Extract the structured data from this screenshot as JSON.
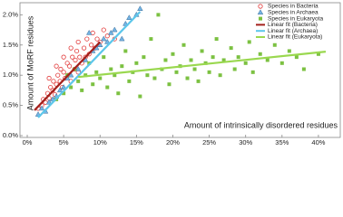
{
  "chart_data": {
    "type": "scatter",
    "x_label": "Amount of intrinsically disordered residues",
    "y_label": "Amount of MoRF residues",
    "xlim": [
      -1,
      43
    ],
    "ylim": [
      -0.03,
      2.2
    ],
    "xticks": [
      {
        "value": 0,
        "label": "0%"
      },
      {
        "value": 5,
        "label": "5%"
      },
      {
        "value": 10,
        "label": "10%"
      },
      {
        "value": 15,
        "label": "15%"
      },
      {
        "value": 20,
        "label": "20%"
      },
      {
        "value": 25,
        "label": "25%"
      },
      {
        "value": 30,
        "label": "30%"
      },
      {
        "value": 35,
        "label": "35%"
      },
      {
        "value": 40,
        "label": "40%"
      }
    ],
    "yticks": [
      {
        "value": 0,
        "label": "0.0%"
      },
      {
        "value": 0.5,
        "label": "0.5%"
      },
      {
        "value": 1,
        "label": "1.0%"
      },
      {
        "value": 1.5,
        "label": "1.5%"
      },
      {
        "value": 2,
        "label": "2.0%"
      }
    ],
    "legend": "top-right",
    "series": [
      {
        "name": "Species in Bacteria",
        "mode": "markers",
        "marker": "circle",
        "color": "#e23b3b",
        "x": [
          1.5,
          2,
          2.2,
          2.5,
          2.8,
          3,
          3.2,
          3.5,
          3.6,
          3.8,
          4,
          4.2,
          4.5,
          4.6,
          4.8,
          5,
          5.2,
          5.5,
          5.6,
          5.8,
          6,
          6.2,
          6.5,
          6.6,
          6.8,
          7,
          7.2,
          7.5,
          7.8,
          8,
          8.2,
          8.5,
          8.8,
          9,
          9.3,
          9.6,
          10,
          10.5,
          11,
          12,
          3,
          4,
          5,
          6,
          7
        ],
        "values": [
          0.45,
          0.5,
          0.6,
          0.55,
          0.7,
          0.62,
          0.8,
          0.75,
          0.9,
          0.68,
          0.85,
          1.0,
          0.9,
          1.1,
          0.8,
          1.05,
          0.95,
          1.2,
          1.0,
          1.15,
          0.9,
          1.3,
          1.1,
          1.25,
          1.4,
          1.05,
          1.3,
          1.2,
          1.45,
          1.3,
          1.6,
          1.35,
          1.5,
          1.7,
          1.45,
          1.6,
          1.55,
          1.75,
          1.65,
          1.6,
          0.95,
          1.15,
          1.3,
          1.45,
          1.55
        ]
      },
      {
        "name": "Species in Archaea",
        "mode": "markers",
        "marker": "triangle",
        "color": "#74b4e4",
        "x": [
          1.5,
          2,
          2.5,
          3,
          3.5,
          4,
          4.5,
          5,
          5.5,
          6,
          7,
          8,
          9,
          9.5,
          10,
          10.5,
          11,
          11.5,
          12,
          13,
          13.5,
          14,
          15,
          15.5,
          8.5
        ],
        "values": [
          0.35,
          0.45,
          0.4,
          0.55,
          0.6,
          0.65,
          0.75,
          0.8,
          0.95,
          1.0,
          1.1,
          1.25,
          1.4,
          1.45,
          1.5,
          1.6,
          1.55,
          1.7,
          1.75,
          1.6,
          1.85,
          1.95,
          2.0,
          2.1,
          1.7
        ]
      },
      {
        "name": "Species in Eukaryota",
        "mode": "markers",
        "marker": "square",
        "color": "#7cc142",
        "x": [
          4,
          5,
          5.5,
          6,
          6.5,
          7,
          7.5,
          8,
          8.5,
          9,
          9.5,
          10,
          10.5,
          11,
          11.5,
          12,
          12.5,
          13,
          13.5,
          14,
          14.5,
          15,
          15.5,
          16,
          16.5,
          17,
          17.5,
          18,
          18.5,
          19,
          19.5,
          20,
          20.5,
          21,
          21.5,
          22,
          22.5,
          23,
          23.5,
          24,
          24.5,
          25,
          25.5,
          26,
          26.5,
          27,
          28,
          28.5,
          29,
          30,
          30.5,
          31,
          32,
          33,
          34,
          35,
          36,
          37,
          38,
          40
        ],
        "values": [
          0.6,
          0.7,
          1.0,
          0.8,
          1.1,
          0.9,
          0.75,
          1.0,
          1.2,
          0.85,
          1.05,
          0.95,
          1.3,
          0.8,
          1.1,
          1.0,
          0.7,
          1.15,
          1.4,
          0.9,
          1.05,
          1.2,
          0.65,
          1.3,
          1.0,
          1.6,
          0.95,
          2.0,
          1.1,
          1.25,
          0.85,
          1.35,
          1.05,
          1.15,
          1.5,
          0.95,
          1.25,
          1.1,
          0.9,
          1.4,
          1.2,
          1.05,
          1.3,
          1.6,
          1.0,
          1.25,
          1.45,
          1.1,
          1.3,
          1.2,
          1.55,
          1.05,
          1.35,
          1.25,
          1.5,
          1.2,
          1.4,
          1.3,
          1.1,
          1.35
        ]
      },
      {
        "name": "Linear fit (Bacteria)",
        "mode": "line",
        "color": "#a3201c",
        "x": [
          1,
          10
        ],
        "values": [
          0.42,
          1.55
        ]
      },
      {
        "name": "Linear fit (Archaea)",
        "mode": "line",
        "color": "#5cc6ea",
        "x": [
          1.5,
          15.5
        ],
        "values": [
          0.3,
          2.05
        ]
      },
      {
        "name": "Linear fit (Eukaryota)",
        "mode": "line",
        "color": "#9ad84f",
        "x": [
          7,
          41
        ],
        "values": [
          0.97,
          1.39
        ]
      }
    ]
  }
}
